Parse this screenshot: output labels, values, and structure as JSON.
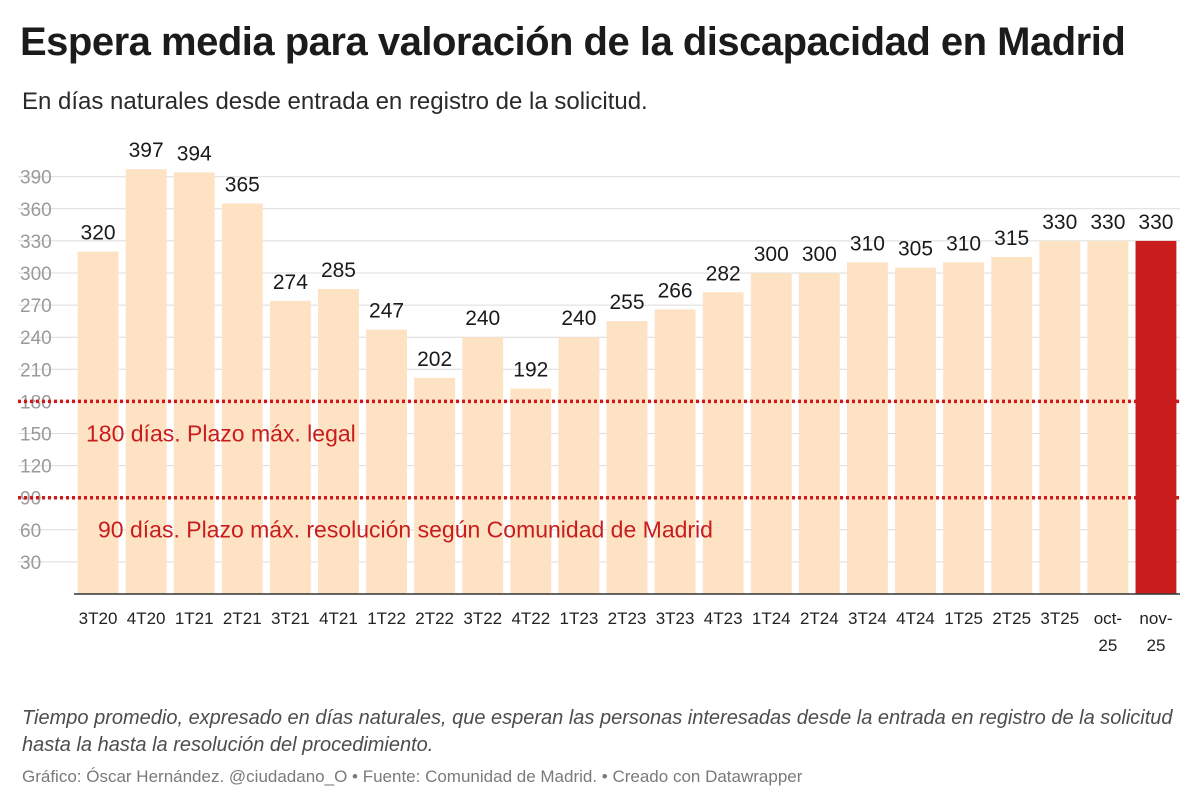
{
  "title": "Espera media para valoración de la discapacidad en Madrid",
  "subtitle": "En días naturales desde entrada en registro de la solicitud.",
  "notes": "Tiempo promedio, expresado en días naturales, que esperan las personas interesadas desde la entrada en registro de la solicitud hasta la hasta la resolución del procedimiento.",
  "byline": "Gráfico: Óscar Hernández. @ciudadano_O • Fuente: Comunidad de Madrid. • Creado con Datawrapper",
  "colors": {
    "bar": "#fde2c4",
    "highlight": "#c91c1c",
    "reference": "#c91c1c",
    "grid": "#dcdcdc",
    "axis": "#333333"
  },
  "chart_data": {
    "type": "bar",
    "categories": [
      "3T20",
      "4T20",
      "1T21",
      "2T21",
      "3T21",
      "4T21",
      "1T22",
      "2T22",
      "3T22",
      "4T22",
      "1T23",
      "2T23",
      "3T23",
      "4T23",
      "1T24",
      "2T24",
      "3T24",
      "4T24",
      "1T25",
      "2T25",
      "3T25",
      "oct-25",
      "nov-25"
    ],
    "values": [
      320,
      397,
      394,
      365,
      274,
      285,
      247,
      202,
      240,
      192,
      240,
      255,
      266,
      282,
      300,
      300,
      310,
      305,
      310,
      315,
      330,
      330,
      330
    ],
    "highlight_category": "nov-25",
    "ylim": [
      0,
      400
    ],
    "yticks": [
      30,
      60,
      90,
      120,
      150,
      180,
      210,
      240,
      270,
      300,
      330,
      360,
      390
    ],
    "grid": true,
    "data_labels": true,
    "reference_lines": [
      {
        "value": 180,
        "label": "180 días. Plazo máx. legal"
      },
      {
        "value": 90,
        "label": "90 días. Plazo máx. resolución según Comunidad de Madrid"
      }
    ]
  }
}
